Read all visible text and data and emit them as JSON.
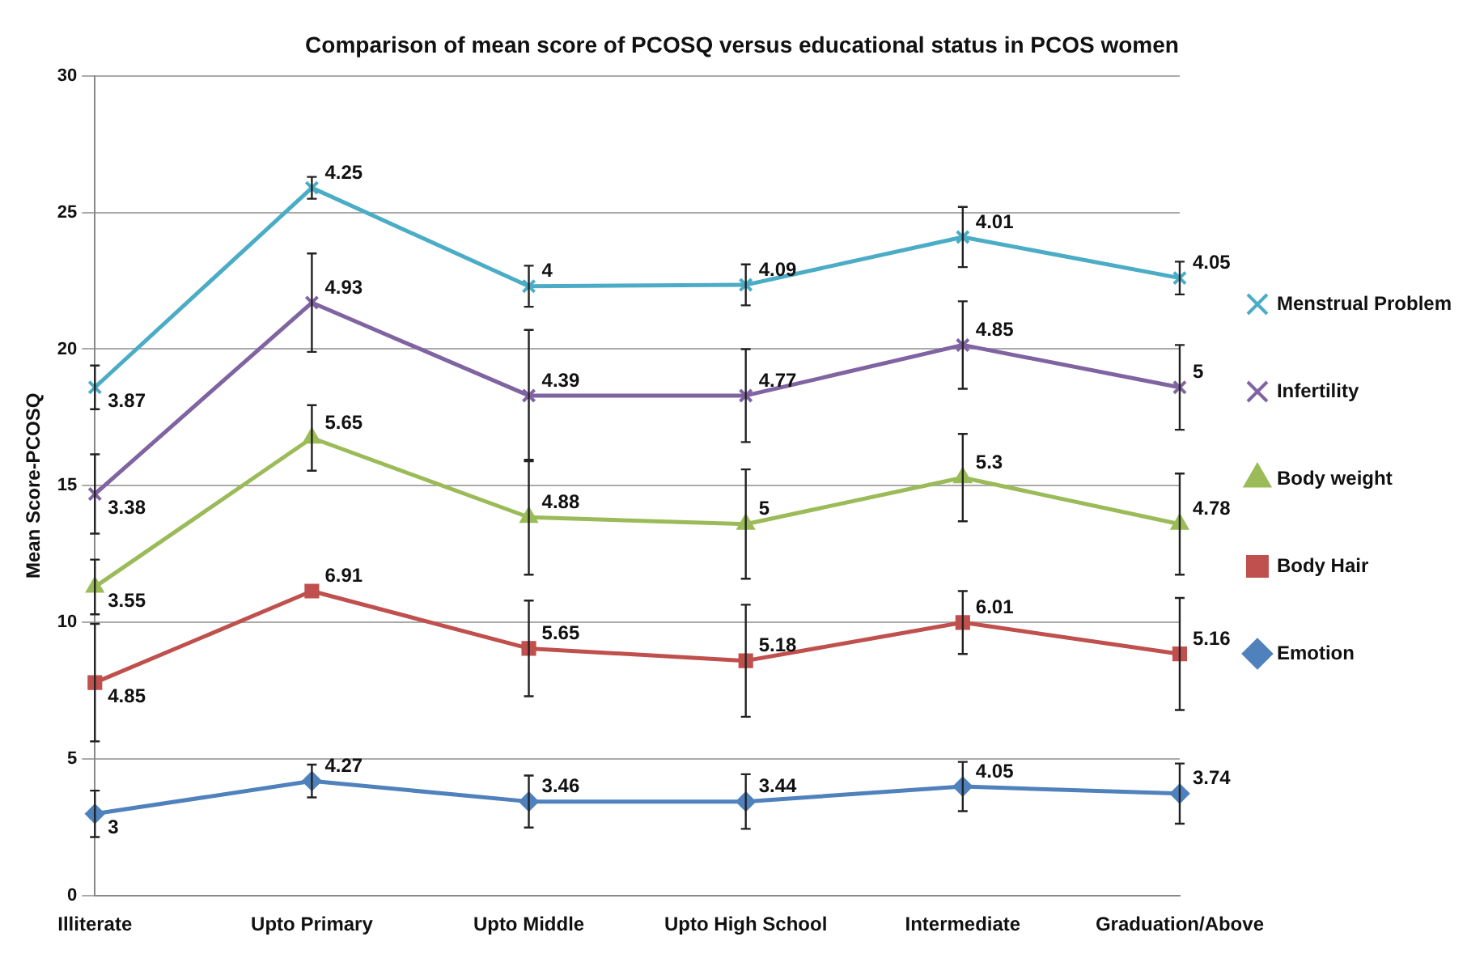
{
  "chart_data": {
    "type": "line",
    "title": "Comparison of mean score of PCOSQ versus educational status in PCOS women",
    "ylabel": "Mean Score-PCOSQ",
    "categories": [
      "Illiterate",
      "Upto Primary",
      "Upto Middle",
      "Upto High School",
      "Intermediate",
      "Graduation/Above"
    ],
    "ylim": [
      0,
      30
    ],
    "yticks": [
      0,
      5,
      10,
      15,
      20,
      25,
      30
    ],
    "grid": "y",
    "legend": "right",
    "series": [
      {
        "name": "Menstrual Problem",
        "color": "#4bacc6",
        "marker": "cross",
        "values": [
          18.6,
          25.9,
          22.3,
          22.35,
          24.1,
          22.6
        ],
        "errors": [
          0.8,
          0.4,
          0.75,
          0.75,
          1.1,
          0.6
        ]
      },
      {
        "name": "Infertility",
        "color": "#8064a2",
        "marker": "cross",
        "values": [
          14.7,
          21.7,
          18.3,
          18.3,
          20.15,
          18.6
        ],
        "errors": [
          1.45,
          1.8,
          2.4,
          1.7,
          1.6,
          1.55
        ]
      },
      {
        "name": "Body weight",
        "color": "#9bbb59",
        "marker": "triangle",
        "values": [
          11.3,
          16.75,
          13.85,
          13.6,
          15.3,
          13.6
        ],
        "errors": [
          1.0,
          1.2,
          2.1,
          2.0,
          1.6,
          1.85
        ]
      },
      {
        "name": "Body Hair",
        "color": "#c0504d",
        "marker": "square",
        "values": [
          7.8,
          11.15,
          9.05,
          8.6,
          10.0,
          8.85
        ],
        "errors": [
          2.15,
          null,
          1.75,
          2.05,
          1.15,
          2.05
        ]
      },
      {
        "name": "Emotion",
        "color": "#4f81bd",
        "marker": "diamond",
        "values": [
          3.0,
          4.2,
          3.45,
          3.45,
          4.0,
          3.74
        ],
        "errors": [
          0.85,
          0.6,
          0.95,
          1.0,
          0.9,
          1.1
        ]
      }
    ],
    "annotations": [
      {
        "text": "3.87",
        "x": "Illiterate",
        "y": 18.6
      },
      {
        "text": "4.25",
        "x": "Upto Primary",
        "y": 25.9
      },
      {
        "text": "4",
        "x": "Upto Middle",
        "y": 22.3
      },
      {
        "text": "4.09",
        "x": "Upto High School",
        "y": 22.35
      },
      {
        "text": "4.01",
        "x": "Intermediate",
        "y": 24.1
      },
      {
        "text": "4.05",
        "x": "Graduation/Above",
        "y": 22.6
      },
      {
        "text": "3.38",
        "x": "Illiterate",
        "y": 14.7
      },
      {
        "text": "4.93",
        "x": "Upto Primary",
        "y": 21.7
      },
      {
        "text": "4.39",
        "x": "Upto Middle",
        "y": 18.3
      },
      {
        "text": "4.77",
        "x": "Upto High School",
        "y": 18.3
      },
      {
        "text": "4.85",
        "x": "Intermediate",
        "y": 20.15
      },
      {
        "text": "5",
        "x": "Graduation/Above",
        "y": 18.6
      },
      {
        "text": "3.55",
        "x": "Illiterate",
        "y": 11.3
      },
      {
        "text": "5.65",
        "x": "Upto Primary",
        "y": 16.75
      },
      {
        "text": "4.88",
        "x": "Upto Middle",
        "y": 13.85
      },
      {
        "text": "5",
        "x": "Upto High School",
        "y": 13.6
      },
      {
        "text": "5.3",
        "x": "Intermediate",
        "y": 15.3
      },
      {
        "text": "4.78",
        "x": "Graduation/Above",
        "y": 13.6
      },
      {
        "text": "4.85",
        "x": "Illiterate",
        "y": 7.8
      },
      {
        "text": "6.91",
        "x": "Upto Primary",
        "y": 11.15
      },
      {
        "text": "5.65",
        "x": "Upto Middle",
        "y": 9.05
      },
      {
        "text": "5.18",
        "x": "Upto High School",
        "y": 8.6
      },
      {
        "text": "6.01",
        "x": "Intermediate",
        "y": 10.0
      },
      {
        "text": "5.16",
        "x": "Graduation/Above",
        "y": 8.85
      },
      {
        "text": "3",
        "x": "Illiterate",
        "y": 3.0
      },
      {
        "text": "4.27",
        "x": "Upto Primary",
        "y": 4.2
      },
      {
        "text": "3.46",
        "x": "Upto Middle",
        "y": 3.45
      },
      {
        "text": "3.44",
        "x": "Upto High School",
        "y": 3.45
      },
      {
        "text": "4.05",
        "x": "Intermediate",
        "y": 4.0
      },
      {
        "text": "3.74",
        "x": "Graduation/Above",
        "y": 3.74
      }
    ]
  }
}
